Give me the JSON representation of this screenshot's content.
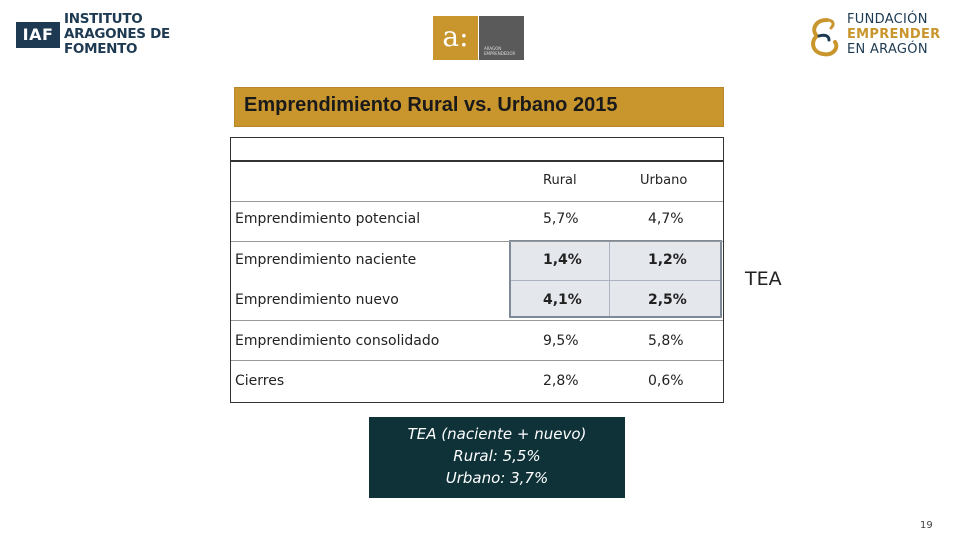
{
  "logos": {
    "iaf": {
      "box": "IAF",
      "lines": [
        "INSTITUTO",
        "ARAGONES DE",
        "FOMENTO"
      ]
    },
    "aragon_emprende": {
      "mark": "a:",
      "sub_lines": [
        "ARAGON",
        "EMPRENDEDOR"
      ]
    },
    "fundacion": {
      "lines": [
        "FUNDACIÓN",
        "EMPRENDER",
        "EN ARAGÓN"
      ]
    }
  },
  "title": "Emprendimiento Rural vs. Urbano 2015",
  "table": {
    "columns": [
      "Rural",
      "Urbano"
    ],
    "rows": [
      {
        "label": "Emprendimiento potencial",
        "rural": "5,7%",
        "urbano": "4,7%"
      },
      {
        "label": "Emprendimiento naciente",
        "rural": "1,4%",
        "urbano": "1,2%"
      },
      {
        "label": "Emprendimiento nuevo",
        "rural": "4,1%",
        "urbano": "2,5%"
      },
      {
        "label": "Emprendimiento consolidado",
        "rural": "9,5%",
        "urbano": "5,8%"
      },
      {
        "label": "Cierres",
        "rural": "2,8%",
        "urbano": "0,6%"
      }
    ]
  },
  "tea_label": "TEA",
  "summary": {
    "line1": "TEA (naciente + nuevo)",
    "line2": "Rural: 5,5%",
    "line3": "Urbano: 3,7%"
  },
  "page_number": "19",
  "colors": {
    "gold": "#c9962e",
    "navy": "#1d3a52",
    "dark_teal": "#0f3239",
    "highlight": "#e4e7ec"
  }
}
